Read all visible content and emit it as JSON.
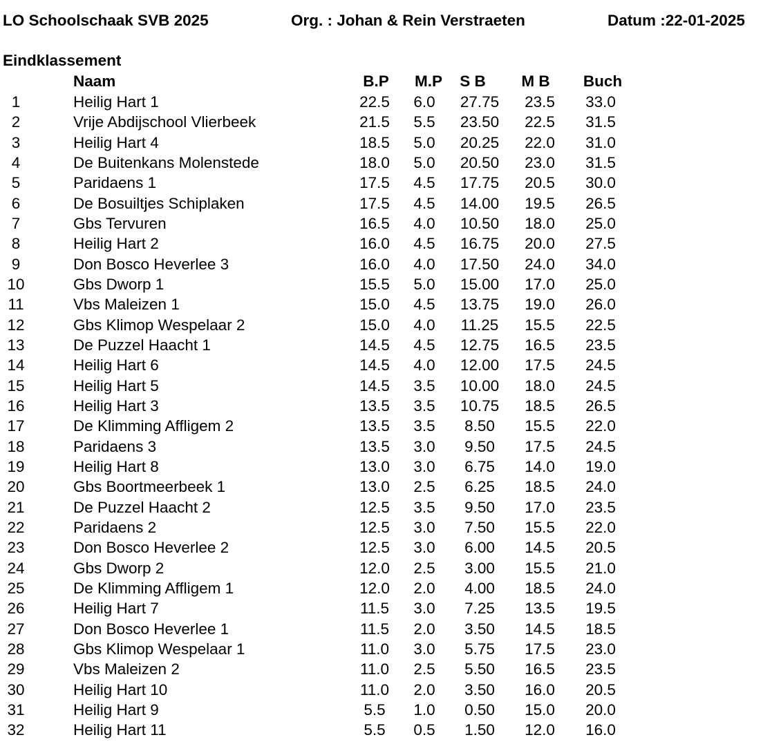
{
  "header": {
    "title": "LO Schoolschaak SVB 2025",
    "organizer": "Org. : Johan & Rein Verstraeten",
    "date": "Datum :22-01-2025"
  },
  "section_title": "Eindklassement",
  "table": {
    "columns": [
      "",
      "Naam",
      "B.P",
      "M.P",
      "S B",
      "M B",
      "Buch"
    ],
    "rows": [
      [
        "1",
        "Heilig Hart 1",
        "22.5",
        "6.0",
        "27.75",
        "23.5",
        "33.0"
      ],
      [
        "2",
        "Vrije Abdijschool Vlierbeek",
        "21.5",
        "5.5",
        "23.50",
        "22.5",
        "31.5"
      ],
      [
        "3",
        "Heilig Hart 4",
        "18.5",
        "5.0",
        "20.25",
        "22.0",
        "31.0"
      ],
      [
        "4",
        "De Buitenkans Molenstede",
        "18.0",
        "5.0",
        "20.50",
        "23.0",
        "31.5"
      ],
      [
        "5",
        "Paridaens 1",
        "17.5",
        "4.5",
        "17.75",
        "20.5",
        "30.0"
      ],
      [
        "6",
        "De Bosuiltjes Schiplaken",
        "17.5",
        "4.5",
        "14.00",
        "19.5",
        "26.5"
      ],
      [
        "7",
        "Gbs Tervuren",
        "16.5",
        "4.0",
        "10.50",
        "18.0",
        "25.0"
      ],
      [
        "8",
        "Heilig Hart 2",
        "16.0",
        "4.5",
        "16.75",
        "20.0",
        "27.5"
      ],
      [
        "9",
        "Don Bosco Heverlee 3",
        "16.0",
        "4.0",
        "17.50",
        "24.0",
        "34.0"
      ],
      [
        "10",
        "Gbs Dworp 1",
        "15.5",
        "5.0",
        "15.00",
        "17.0",
        "25.0"
      ],
      [
        "11",
        "Vbs Maleizen 1",
        "15.0",
        "4.5",
        "13.75",
        "19.0",
        "26.0"
      ],
      [
        "12",
        "Gbs Klimop Wespelaar 2",
        "15.0",
        "4.0",
        "11.25",
        "15.5",
        "22.5"
      ],
      [
        "13",
        "De Puzzel Haacht 1",
        "14.5",
        "4.5",
        "12.75",
        "16.5",
        "23.5"
      ],
      [
        "14",
        "Heilig Hart 6",
        "14.5",
        "4.0",
        "12.00",
        "17.5",
        "24.5"
      ],
      [
        "15",
        "Heilig Hart 5",
        "14.5",
        "3.5",
        "10.00",
        "18.0",
        "24.5"
      ],
      [
        "16",
        "Heilig Hart 3",
        "13.5",
        "3.5",
        "10.75",
        "18.5",
        "26.5"
      ],
      [
        "17",
        "De Klimming Affligem 2",
        "13.5",
        "3.5",
        "8.50",
        "15.5",
        "22.0"
      ],
      [
        "18",
        "Paridaens 3",
        "13.5",
        "3.0",
        "9.50",
        "17.5",
        "24.5"
      ],
      [
        "19",
        "Heilig Hart 8",
        "13.0",
        "3.0",
        "6.75",
        "14.0",
        "19.0"
      ],
      [
        "20",
        "Gbs Boortmeerbeek 1",
        "13.0",
        "2.5",
        "6.25",
        "18.5",
        "24.0"
      ],
      [
        "21",
        "De Puzzel Haacht 2",
        "12.5",
        "3.5",
        "9.50",
        "17.0",
        "23.5"
      ],
      [
        "22",
        "Paridaens 2",
        "12.5",
        "3.0",
        "7.50",
        "15.5",
        "22.0"
      ],
      [
        "23",
        "Don Bosco Heverlee 2",
        "12.5",
        "3.0",
        "6.00",
        "14.5",
        "20.5"
      ],
      [
        "24",
        "Gbs Dworp 2",
        "12.0",
        "2.5",
        "3.00",
        "15.5",
        "21.0"
      ],
      [
        "25",
        "De Klimming Affligem 1",
        "12.0",
        "2.0",
        "4.00",
        "18.5",
        "24.0"
      ],
      [
        "26",
        "Heilig Hart 7",
        "11.5",
        "3.0",
        "7.25",
        "13.5",
        "19.5"
      ],
      [
        "27",
        "Don Bosco Heverlee 1",
        "11.5",
        "2.0",
        "3.50",
        "14.5",
        "18.5"
      ],
      [
        "28",
        "Gbs Klimop Wespelaar 1",
        "11.0",
        "3.0",
        "5.75",
        "17.5",
        "23.0"
      ],
      [
        "29",
        "Vbs Maleizen 2",
        "11.0",
        "2.5",
        "5.50",
        "16.5",
        "23.5"
      ],
      [
        "30",
        "Heilig Hart 10",
        "11.0",
        "2.0",
        "3.50",
        "16.0",
        "20.5"
      ],
      [
        "31",
        "Heilig Hart 9",
        "5.5",
        "1.0",
        "0.50",
        "15.0",
        "20.0"
      ],
      [
        "32",
        "Heilig Hart 11",
        "5.5",
        "0.5",
        "1.50",
        "12.0",
        "16.0"
      ]
    ]
  }
}
